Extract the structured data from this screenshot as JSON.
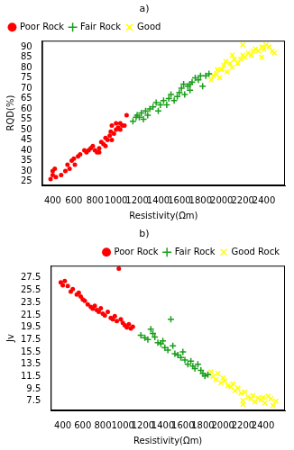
{
  "chart_data": [
    {
      "type": "scatter",
      "title": "a)",
      "x_label": "Resistivity(Ωm)",
      "y_label": "RQD(%)",
      "xlim": [
        300,
        2600
      ],
      "xticks": [
        400,
        600,
        800,
        1000,
        1200,
        1400,
        1600,
        1800,
        2000,
        2200,
        2400
      ],
      "ylim": [
        23,
        93
      ],
      "yticks": [
        25,
        30,
        35,
        40,
        45,
        50,
        55,
        60,
        65,
        70,
        75,
        80,
        85,
        90
      ],
      "grid": false,
      "legend": "upper left",
      "series": [
        {
          "name": "Poor Rock",
          "color": "#ff0000",
          "marker": "circle",
          "values": [
            [
              380,
              26
            ],
            [
              400,
              28
            ],
            [
              400,
              30
            ],
            [
              420,
              31
            ],
            [
              430,
              27
            ],
            [
              480,
              28
            ],
            [
              520,
              30
            ],
            [
              540,
              33
            ],
            [
              560,
              31
            ],
            [
              580,
              35
            ],
            [
              600,
              36
            ],
            [
              610,
              33
            ],
            [
              640,
              37
            ],
            [
              660,
              38
            ],
            [
              700,
              40
            ],
            [
              720,
              39
            ],
            [
              740,
              40
            ],
            [
              760,
              41
            ],
            [
              780,
              42
            ],
            [
              800,
              40
            ],
            [
              820,
              39
            ],
            [
              840,
              41
            ],
            [
              860,
              44
            ],
            [
              880,
              43
            ],
            [
              900,
              46
            ],
            [
              920,
              45
            ],
            [
              940,
              47
            ],
            [
              950,
              49
            ],
            [
              960,
              45
            ],
            [
              980,
              48
            ],
            [
              1000,
              50
            ],
            [
              1020,
              51
            ],
            [
              1040,
              50
            ],
            [
              1060,
              52
            ],
            [
              1080,
              52
            ],
            [
              1100,
              57
            ],
            [
              1000,
              53
            ],
            [
              960,
              52
            ],
            [
              900,
              42
            ],
            [
              840,
              39
            ],
            [
              1040,
              53
            ]
          ]
        },
        {
          "name": "Fair Rock",
          "color": "#1a9e1a",
          "marker": "plus",
          "values": [
            [
              1160,
              54
            ],
            [
              1190,
              56
            ],
            [
              1200,
              57
            ],
            [
              1220,
              56
            ],
            [
              1240,
              58
            ],
            [
              1260,
              55
            ],
            [
              1280,
              59
            ],
            [
              1300,
              57
            ],
            [
              1320,
              60
            ],
            [
              1350,
              61
            ],
            [
              1380,
              63
            ],
            [
              1400,
              59
            ],
            [
              1420,
              62
            ],
            [
              1450,
              64
            ],
            [
              1480,
              62
            ],
            [
              1500,
              65
            ],
            [
              1520,
              67
            ],
            [
              1550,
              64
            ],
            [
              1580,
              66
            ],
            [
              1600,
              68
            ],
            [
              1620,
              70
            ],
            [
              1650,
              67
            ],
            [
              1680,
              71
            ],
            [
              1700,
              69
            ],
            [
              1720,
              73
            ],
            [
              1750,
              75
            ],
            [
              1780,
              74
            ],
            [
              1800,
              76
            ],
            [
              1820,
              71
            ],
            [
              1850,
              76
            ],
            [
              1880,
              77
            ],
            [
              1700,
              72
            ],
            [
              1640,
              72
            ]
          ]
        },
        {
          "name": "Good",
          "color": "#ffff00",
          "marker": "x",
          "values": [
            [
              1900,
              74
            ],
            [
              1920,
              76
            ],
            [
              1950,
              77
            ],
            [
              1980,
              75
            ],
            [
              2000,
              79
            ],
            [
              2020,
              81
            ],
            [
              2050,
              78
            ],
            [
              2080,
              82
            ],
            [
              2100,
              80
            ],
            [
              2120,
              84
            ],
            [
              2150,
              82
            ],
            [
              2180,
              84
            ],
            [
              2200,
              86
            ],
            [
              2220,
              85
            ],
            [
              2250,
              87
            ],
            [
              2280,
              86
            ],
            [
              2300,
              88
            ],
            [
              2320,
              89
            ],
            [
              2350,
              88
            ],
            [
              2380,
              90
            ],
            [
              2400,
              89
            ],
            [
              2420,
              91
            ],
            [
              2450,
              90
            ],
            [
              2480,
              88
            ],
            [
              2500,
              87
            ],
            [
              2200,
              91
            ],
            [
              2100,
              86
            ],
            [
              1960,
              79
            ],
            [
              2040,
              83
            ],
            [
              2380,
              85
            ]
          ]
        }
      ]
    },
    {
      "type": "scatter",
      "title": "b)",
      "x_label": "Resistivity(Ωm)",
      "y_label": "Jv",
      "xlim": [
        280,
        2620
      ],
      "xticks": [
        400,
        600,
        800,
        1000,
        1200,
        1400,
        1600,
        1800,
        2000,
        2200,
        2400
      ],
      "ylim": [
        6,
        29.5
      ],
      "yticks": [
        7.5,
        9.5,
        11.5,
        13.5,
        15.5,
        17.5,
        19.5,
        21.5,
        23.5,
        25.5,
        27.5
      ],
      "grid": false,
      "legend": "upper right",
      "series": [
        {
          "name": "Poor Rock",
          "color": "#ff0000",
          "marker": "circle",
          "values": [
            [
              380,
              26.8
            ],
            [
              400,
              26.3
            ],
            [
              420,
              27
            ],
            [
              450,
              26.2
            ],
            [
              480,
              25.3
            ],
            [
              500,
              25.7
            ],
            [
              540,
              24.8
            ],
            [
              560,
              25.1
            ],
            [
              580,
              24.5
            ],
            [
              600,
              24
            ],
            [
              620,
              23.8
            ],
            [
              650,
              23.2
            ],
            [
              680,
              22.8
            ],
            [
              700,
              22.5
            ],
            [
              720,
              23
            ],
            [
              740,
              22.3
            ],
            [
              760,
              22
            ],
            [
              780,
              22.6
            ],
            [
              800,
              21.7
            ],
            [
              820,
              21.4
            ],
            [
              850,
              22
            ],
            [
              880,
              21
            ],
            [
              900,
              20.8
            ],
            [
              920,
              21.3
            ],
            [
              940,
              20.5
            ],
            [
              960,
              29
            ],
            [
              980,
              20.8
            ],
            [
              1000,
              20.2
            ],
            [
              1020,
              19.8
            ],
            [
              1040,
              19.5
            ],
            [
              1060,
              20
            ],
            [
              1080,
              19.3
            ],
            [
              1100,
              19.6
            ]
          ]
        },
        {
          "name": "Fair Rock",
          "color": "#1a9e1a",
          "marker": "plus",
          "values": [
            [
              1180,
              18.2
            ],
            [
              1220,
              17.8
            ],
            [
              1250,
              17.5
            ],
            [
              1280,
              19.2
            ],
            [
              1300,
              18.5
            ],
            [
              1320,
              17.9
            ],
            [
              1350,
              17
            ],
            [
              1380,
              16.8
            ],
            [
              1400,
              17.3
            ],
            [
              1420,
              16.2
            ],
            [
              1450,
              15.8
            ],
            [
              1480,
              20.8
            ],
            [
              1500,
              16.5
            ],
            [
              1520,
              15.2
            ],
            [
              1550,
              15
            ],
            [
              1580,
              14.6
            ],
            [
              1600,
              15.5
            ],
            [
              1620,
              14.2
            ],
            [
              1650,
              13.5
            ],
            [
              1680,
              14
            ],
            [
              1700,
              13.2
            ],
            [
              1720,
              12.8
            ],
            [
              1750,
              13.5
            ],
            [
              1780,
              12.5
            ],
            [
              1800,
              12
            ],
            [
              1820,
              11.6
            ],
            [
              1850,
              11.8
            ]
          ]
        },
        {
          "name": "Good Rock",
          "color": "#ffff00",
          "marker": "x",
          "values": [
            [
              1880,
              12.3
            ],
            [
              1900,
              11.5
            ],
            [
              1930,
              11
            ],
            [
              1950,
              12
            ],
            [
              1980,
              10.5
            ],
            [
              2000,
              11.3
            ],
            [
              2020,
              10.8
            ],
            [
              2050,
              10
            ],
            [
              2080,
              9.8
            ],
            [
              2100,
              10.3
            ],
            [
              2120,
              9.2
            ],
            [
              2150,
              9.6
            ],
            [
              2180,
              8.8
            ],
            [
              2200,
              7.6
            ],
            [
              2220,
              9
            ],
            [
              2250,
              8.2
            ],
            [
              2280,
              7.9
            ],
            [
              2300,
              8.4
            ],
            [
              2320,
              7.4
            ],
            [
              2350,
              8
            ],
            [
              2380,
              7.7
            ],
            [
              2400,
              8.1
            ],
            [
              2420,
              7.2
            ],
            [
              2450,
              8.3
            ],
            [
              2480,
              7.9
            ],
            [
              2500,
              6.8
            ],
            [
              2530,
              7.5
            ],
            [
              2200,
              7
            ]
          ]
        }
      ]
    }
  ]
}
